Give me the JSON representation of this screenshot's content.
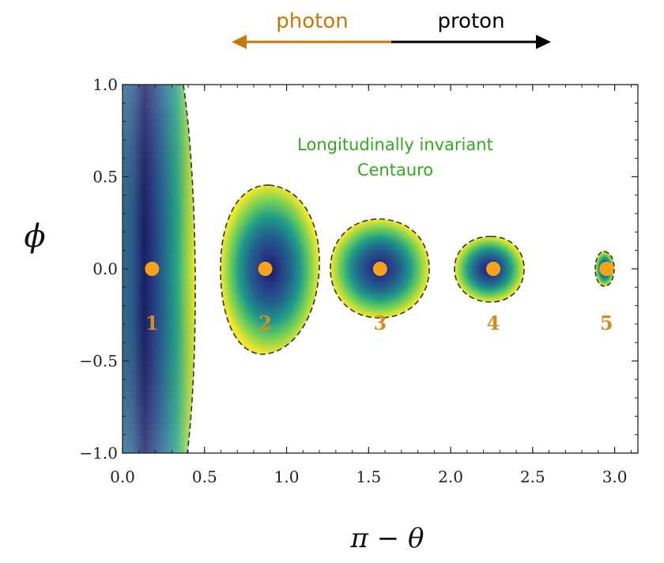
{
  "chart_data": {
    "type": "heatmap",
    "title": "",
    "xlabel": "π − θ",
    "ylabel": "ϕ",
    "xlim": [
      0.0,
      3.14159
    ],
    "ylim": [
      -1.0,
      1.0
    ],
    "xticks": [
      "0.0",
      "0.5",
      "1.0",
      "1.5",
      "2.0",
      "2.5",
      "3.0"
    ],
    "xtick_values": [
      0.0,
      0.5,
      1.0,
      1.5,
      2.0,
      2.5,
      3.0
    ],
    "yticks": [
      "−1.0",
      "−0.5",
      "0.0",
      "0.5",
      "1.0"
    ],
    "ytick_values": [
      -1.0,
      -0.5,
      0.0,
      0.5,
      1.0
    ],
    "colormap": "viridis",
    "annotation": [
      "Longitudinally invariant",
      "Centauro"
    ],
    "annotation_color": "#33aa1e",
    "arrow_left_label": "photon",
    "arrow_left_color": "#c8780a",
    "arrow_right_label": "proton",
    "arrow_right_color": "#000000",
    "point_color": "#f8a11a",
    "label_color": "#d98c1e",
    "regions": [
      {
        "label": "1",
        "center": [
          0.18,
          0.0
        ],
        "x_extent": [
          0.0,
          0.4
        ],
        "phi_halfwidth": 1.0
      },
      {
        "label": "2",
        "center": [
          0.87,
          0.0
        ],
        "x_extent": [
          0.59,
          1.12
        ],
        "phi_range": [
          -0.45,
          0.46
        ]
      },
      {
        "label": "3",
        "center": [
          1.57,
          0.0
        ],
        "x_extent": [
          1.29,
          1.85
        ],
        "phi_range": [
          -0.27,
          0.27
        ]
      },
      {
        "label": "4",
        "center": [
          2.26,
          0.0
        ],
        "x_extent": [
          2.04,
          2.48
        ],
        "phi_range": [
          -0.18,
          0.18
        ]
      },
      {
        "label": "5",
        "center": [
          2.95,
          0.0
        ],
        "x_extent": [
          2.9,
          3.0
        ],
        "phi_range": [
          -0.09,
          0.09
        ]
      }
    ]
  }
}
